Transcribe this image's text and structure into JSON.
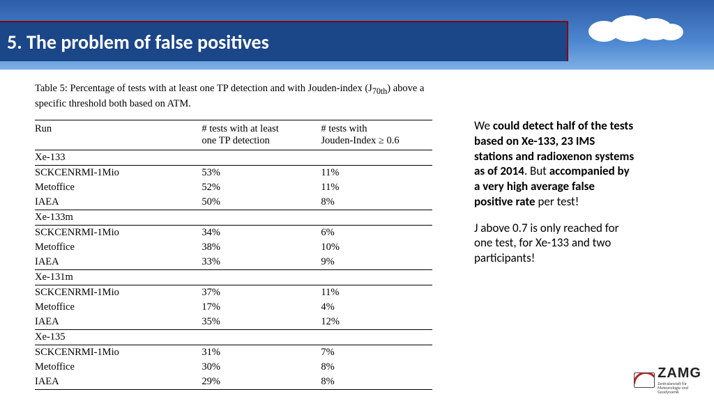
{
  "header": {
    "title": "5. The problem of false positives"
  },
  "table": {
    "caption_plain": "Table 5: Percentage of tests with at least one TP detection and with Jouden-index (J",
    "caption_sub": "70th",
    "caption_tail": ") above a specific threshold both based on ATM.",
    "col_run": "Run",
    "col_tp_l1": "# tests with at least",
    "col_tp_l2": "one TP detection",
    "col_j_l1": "# tests with",
    "col_j_l2": "Jouden-Index ≥ 0.6",
    "groups": [
      {
        "name": "Xe-133",
        "rows": [
          {
            "run": "SCKCENRMI-1Mio",
            "tp": "53%",
            "j": "11%"
          },
          {
            "run": "Metoffice",
            "tp": "52%",
            "j": "11%"
          },
          {
            "run": "IAEA",
            "tp": "50%",
            "j": "8%"
          }
        ]
      },
      {
        "name": "Xe-133m",
        "rows": [
          {
            "run": "SCKCENRMI-1Mio",
            "tp": "34%",
            "j": "6%"
          },
          {
            "run": "Metoffice",
            "tp": "38%",
            "j": "10%"
          },
          {
            "run": "IAEA",
            "tp": "33%",
            "j": "9%"
          }
        ]
      },
      {
        "name": "Xe-131m",
        "rows": [
          {
            "run": "SCKCENRMI-1Mio",
            "tp": "37%",
            "j": "11%"
          },
          {
            "run": "Metoffice",
            "tp": "17%",
            "j": "4%"
          },
          {
            "run": "IAEA",
            "tp": "35%",
            "j": "12%"
          }
        ]
      },
      {
        "name": "Xe-135",
        "rows": [
          {
            "run": "SCKCENRMI-1Mio",
            "tp": "31%",
            "j": "7%"
          },
          {
            "run": "Metoffice",
            "tp": "30%",
            "j": "8%"
          },
          {
            "run": "IAEA",
            "tp": "29%",
            "j": "8%"
          }
        ]
      }
    ]
  },
  "side": {
    "p1_a": "We ",
    "p1_b": "could detect half of the tests based on Xe-133, 23 IMS stations and radioxenon systems as of 2014",
    "p1_c": ". But ",
    "p1_d": "accompanied by a very high average false positive rate",
    "p1_e": " per test!",
    "p2": "J above 0.7 is only reached for one test, for Xe-133 and two participants!"
  },
  "logo": {
    "name": "ZAMG",
    "sub1": "Zentralanstalt für",
    "sub2": "Meteorologie und",
    "sub3": "Geodynamik"
  }
}
